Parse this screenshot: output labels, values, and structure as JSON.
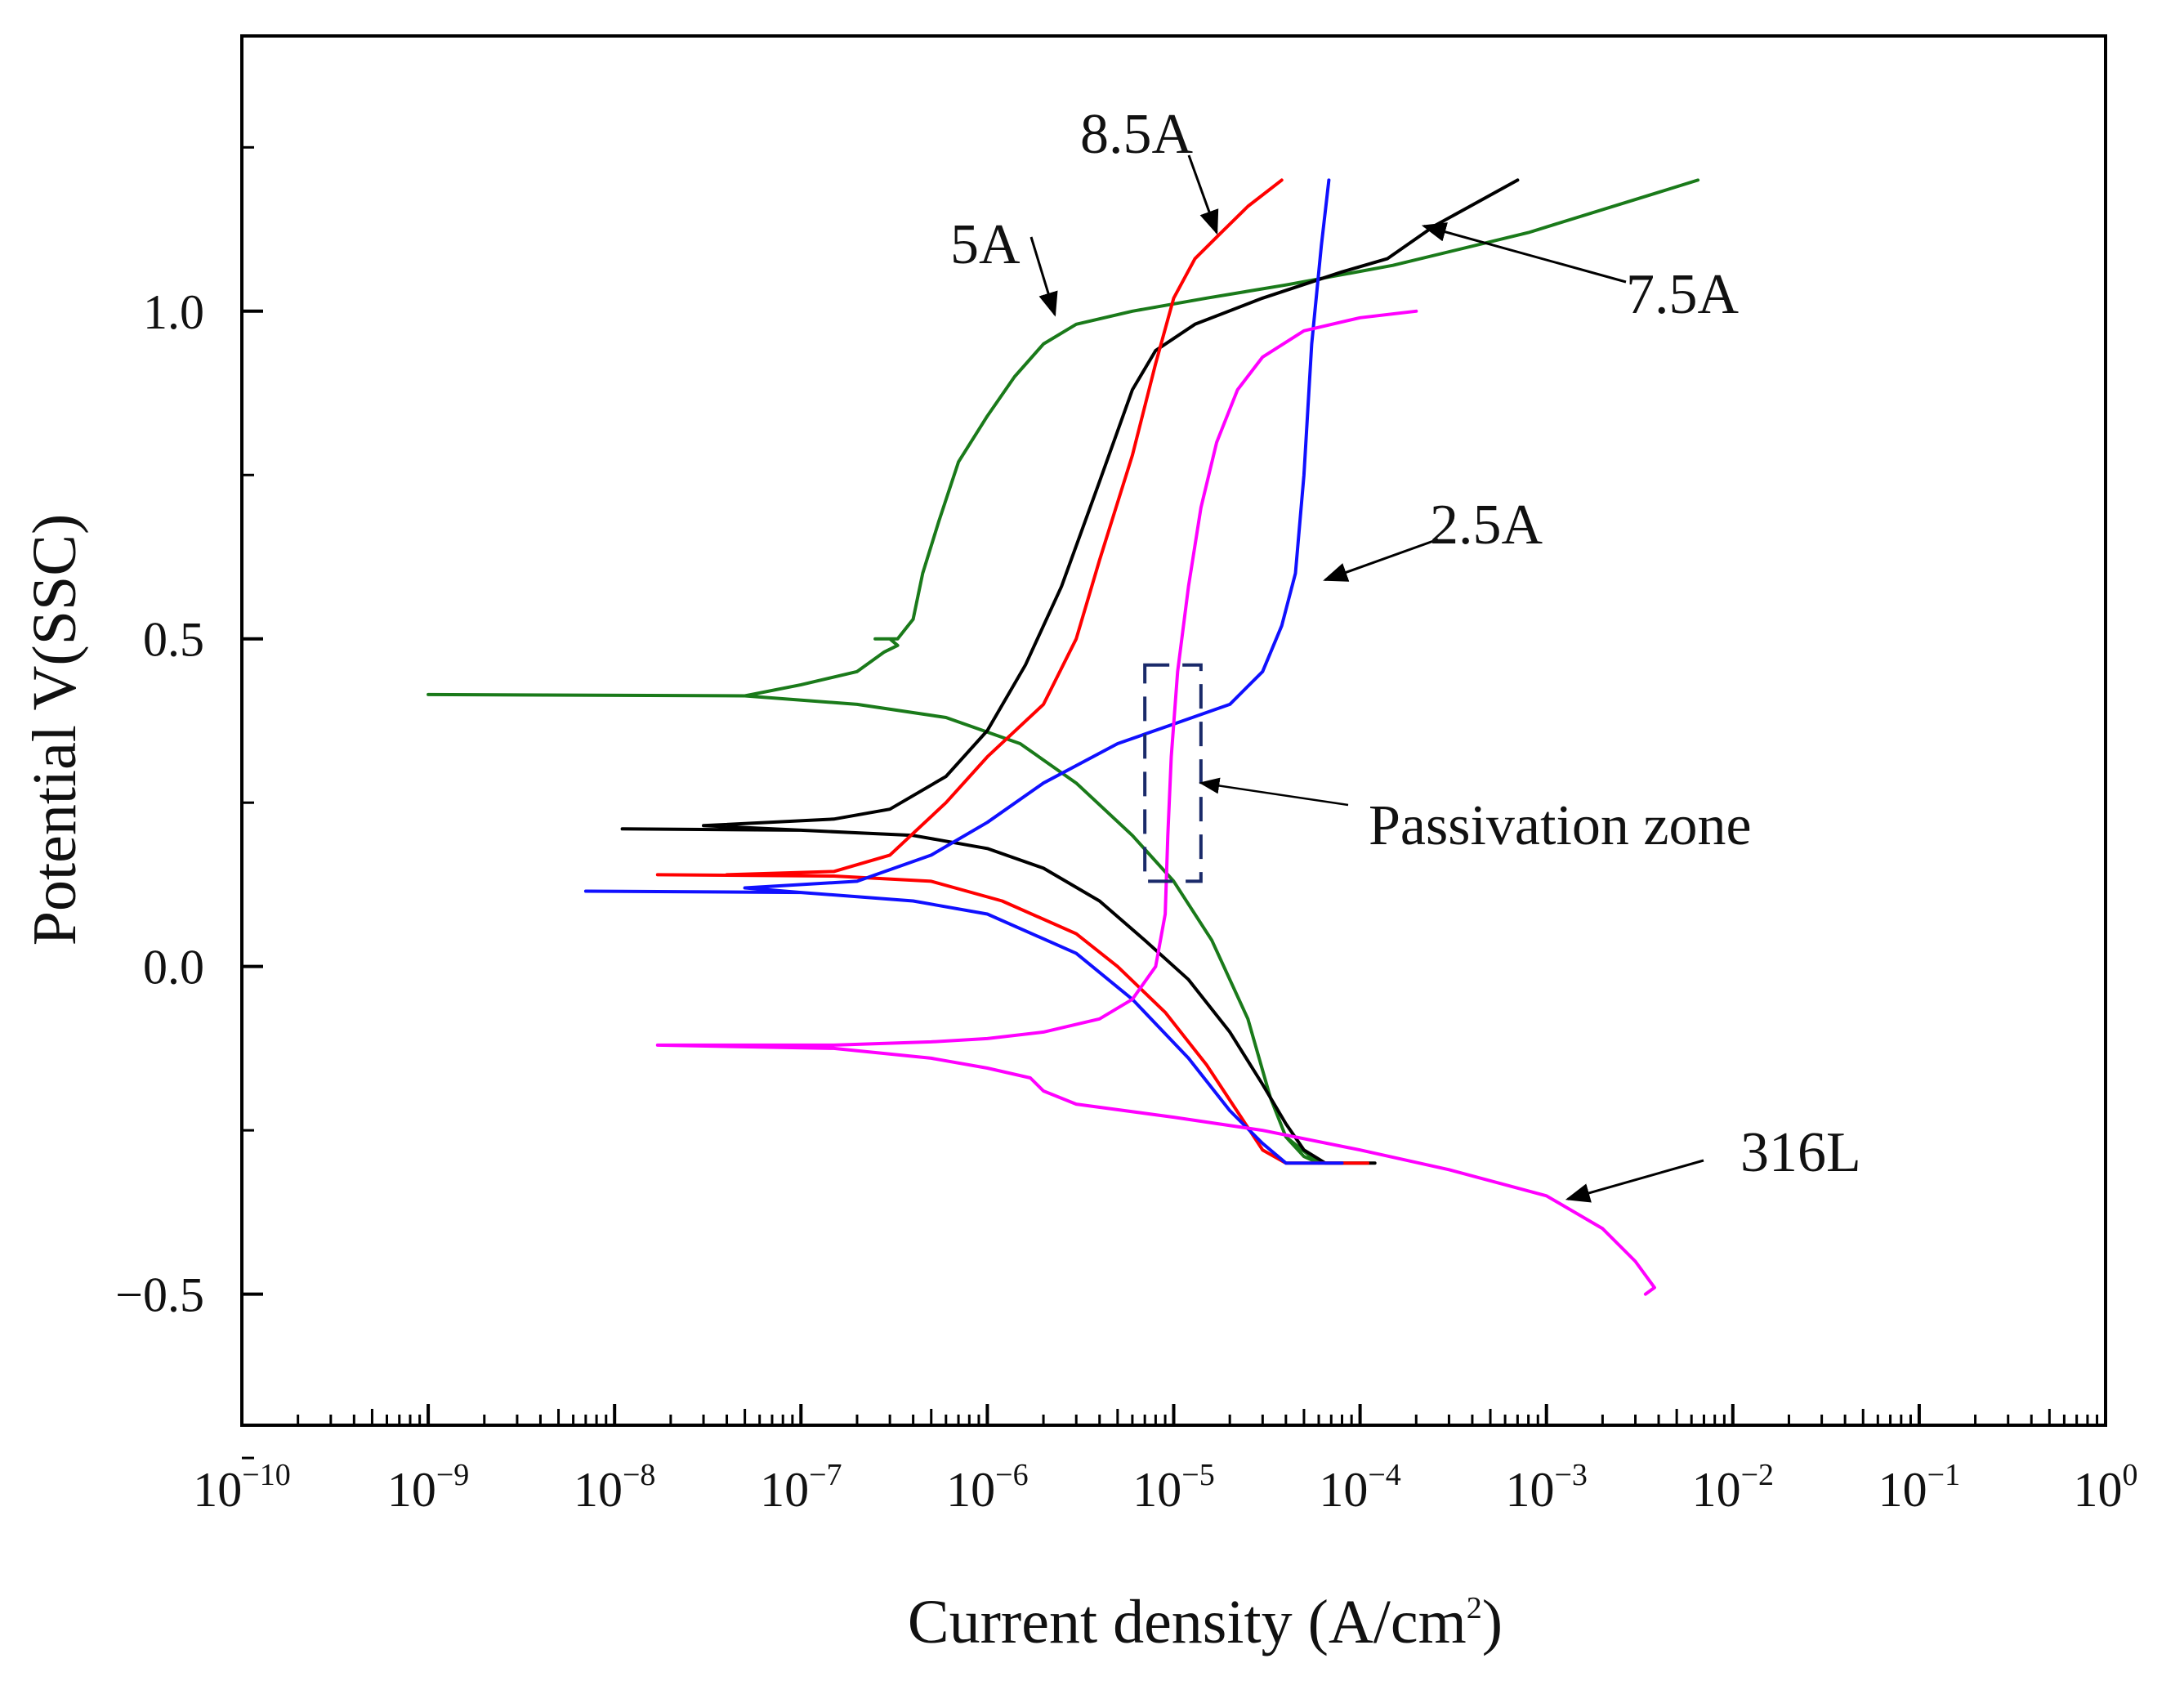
{
  "chart_data": {
    "type": "line",
    "title": "",
    "xlabel": {
      "main": "Current density (A/cm",
      "sup": "2",
      "tail": ")"
    },
    "ylabel": "Potential V(SSC)",
    "x_scale": "log",
    "xlim": [
      1e-10,
      1
    ],
    "ylim": [
      -0.7,
      1.42
    ],
    "x_ticks": [
      {
        "value": 1e-10,
        "base": "10",
        "exp": "−10"
      },
      {
        "value": 1e-09,
        "base": "10",
        "exp": "−9"
      },
      {
        "value": 1e-08,
        "base": "10",
        "exp": "−8"
      },
      {
        "value": 1e-07,
        "base": "10",
        "exp": "−7"
      },
      {
        "value": 1e-06,
        "base": "10",
        "exp": "−6"
      },
      {
        "value": 1e-05,
        "base": "10",
        "exp": "−5"
      },
      {
        "value": 0.0001,
        "base": "10",
        "exp": "−4"
      },
      {
        "value": 0.001,
        "base": "10",
        "exp": "−3"
      },
      {
        "value": 0.01,
        "base": "10",
        "exp": "−2"
      },
      {
        "value": 0.1,
        "base": "10",
        "exp": "−1"
      },
      {
        "value": 1,
        "base": "10",
        "exp": "0"
      }
    ],
    "y_ticks": [
      {
        "value": -0.5,
        "label": "−0.5"
      },
      {
        "value": 0.0,
        "label": "0.0"
      },
      {
        "value": 0.5,
        "label": "0.5"
      },
      {
        "value": 1.0,
        "label": "1.0"
      }
    ],
    "y_minor_ticks": [
      -0.75,
      -0.25,
      0.25,
      0.75,
      1.25
    ],
    "series": [
      {
        "name": "5A",
        "color": "#1a7a1a",
        "points": [
          [
            1e-09,
            0.415
          ],
          [
            5e-08,
            0.413
          ],
          [
            2e-07,
            0.4
          ],
          [
            6e-07,
            0.38
          ],
          [
            1.5e-06,
            0.34
          ],
          [
            3e-06,
            0.28
          ],
          [
            6e-06,
            0.2
          ],
          [
            1e-05,
            0.13
          ],
          [
            1.6e-05,
            0.04
          ],
          [
            2.5e-05,
            -0.08
          ],
          [
            3.3e-05,
            -0.2
          ],
          [
            4e-05,
            -0.26
          ],
          [
            5e-05,
            -0.29
          ],
          [
            6e-05,
            -0.3
          ],
          [
            4e-05,
            -0.26
          ],
          [
            3.3e-05,
            -0.2
          ],
          [
            2.5e-05,
            -0.08
          ],
          [
            1.6e-05,
            0.04
          ],
          [
            1e-05,
            0.13
          ],
          [
            6e-06,
            0.2
          ],
          [
            3e-06,
            0.28
          ],
          [
            1.5e-06,
            0.34
          ],
          [
            6e-07,
            0.38
          ],
          [
            2e-07,
            0.4
          ],
          [
            5e-08,
            0.413
          ],
          [
            1e-07,
            0.43
          ],
          [
            2e-07,
            0.45
          ],
          [
            2.8e-07,
            0.48
          ],
          [
            3.3e-07,
            0.49
          ],
          [
            3e-07,
            0.5
          ],
          [
            2.5e-07,
            0.5
          ],
          [
            3.3e-07,
            0.5
          ],
          [
            4e-07,
            0.53
          ],
          [
            4.5e-07,
            0.6
          ],
          [
            5.5e-07,
            0.68
          ],
          [
            7e-07,
            0.77
          ],
          [
            1e-06,
            0.84
          ],
          [
            1.4e-06,
            0.9
          ],
          [
            2e-06,
            0.95
          ],
          [
            3e-06,
            0.98
          ],
          [
            6e-06,
            1.0
          ],
          [
            1.5e-05,
            1.02
          ],
          [
            4e-05,
            1.04
          ],
          [
            0.00015,
            1.07
          ],
          [
            0.0008,
            1.12
          ],
          [
            0.0065,
            1.2
          ]
        ]
      },
      {
        "name": "7.5A",
        "color": "#000000",
        "points": [
          [
            1.1e-08,
            0.21
          ],
          [
            1e-07,
            0.208
          ],
          [
            4e-07,
            0.2
          ],
          [
            1e-06,
            0.18
          ],
          [
            2e-06,
            0.15
          ],
          [
            4e-06,
            0.1
          ],
          [
            7e-06,
            0.04
          ],
          [
            1.2e-05,
            -0.02
          ],
          [
            2e-05,
            -0.1
          ],
          [
            3e-05,
            -0.18
          ],
          [
            4e-05,
            -0.24
          ],
          [
            5e-05,
            -0.28
          ],
          [
            6.5e-05,
            -0.3
          ],
          [
            0.00012,
            -0.3
          ],
          [
            6.5e-05,
            -0.3
          ],
          [
            5e-05,
            -0.28
          ],
          [
            4e-05,
            -0.24
          ],
          [
            3e-05,
            -0.18
          ],
          [
            2e-05,
            -0.1
          ],
          [
            1.2e-05,
            -0.02
          ],
          [
            7e-06,
            0.04
          ],
          [
            4e-06,
            0.1
          ],
          [
            2e-06,
            0.15
          ],
          [
            1e-06,
            0.18
          ],
          [
            4e-07,
            0.2
          ],
          [
            1e-07,
            0.208
          ],
          [
            3e-08,
            0.215
          ],
          [
            1.5e-07,
            0.225
          ],
          [
            3e-07,
            0.24
          ],
          [
            6e-07,
            0.29
          ],
          [
            1e-06,
            0.36
          ],
          [
            1.6e-06,
            0.46
          ],
          [
            2.5e-06,
            0.58
          ],
          [
            4e-06,
            0.74
          ],
          [
            6e-06,
            0.88
          ],
          [
            8e-06,
            0.94
          ],
          [
            1.3e-05,
            0.98
          ],
          [
            3e-05,
            1.02
          ],
          [
            8e-05,
            1.06
          ],
          [
            0.00014,
            1.08
          ],
          [
            0.00025,
            1.13
          ],
          [
            0.0007,
            1.2
          ]
        ]
      },
      {
        "name": "8.5A",
        "color": "#ff0000",
        "points": [
          [
            1.7e-08,
            0.14
          ],
          [
            1.5e-07,
            0.138
          ],
          [
            5e-07,
            0.13
          ],
          [
            1.2e-06,
            0.1
          ],
          [
            3e-06,
            0.05
          ],
          [
            5e-06,
            0.0
          ],
          [
            9e-06,
            -0.07
          ],
          [
            1.5e-05,
            -0.15
          ],
          [
            2.3e-05,
            -0.23
          ],
          [
            3e-05,
            -0.28
          ],
          [
            4e-05,
            -0.3
          ],
          [
            0.00011,
            -0.3
          ],
          [
            4e-05,
            -0.3
          ],
          [
            3e-05,
            -0.28
          ],
          [
            2.3e-05,
            -0.23
          ],
          [
            1.5e-05,
            -0.15
          ],
          [
            9e-06,
            -0.07
          ],
          [
            5e-06,
            0.0
          ],
          [
            3e-06,
            0.05
          ],
          [
            1.2e-06,
            0.1
          ],
          [
            5e-07,
            0.13
          ],
          [
            1.5e-07,
            0.138
          ],
          [
            4e-08,
            0.14
          ],
          [
            1.5e-07,
            0.145
          ],
          [
            3e-07,
            0.17
          ],
          [
            6e-07,
            0.25
          ],
          [
            1e-06,
            0.32
          ],
          [
            2e-06,
            0.4
          ],
          [
            3e-06,
            0.5
          ],
          [
            4e-06,
            0.62
          ],
          [
            6e-06,
            0.78
          ],
          [
            8e-06,
            0.92
          ],
          [
            1e-05,
            1.02
          ],
          [
            1.3e-05,
            1.08
          ],
          [
            1.8e-05,
            1.12
          ],
          [
            2.5e-05,
            1.16
          ],
          [
            3.8e-05,
            1.2
          ]
        ]
      },
      {
        "name": "2.5A",
        "color": "#1010ff",
        "points": [
          [
            7e-09,
            0.115
          ],
          [
            1e-07,
            0.113
          ],
          [
            4e-07,
            0.1
          ],
          [
            1e-06,
            0.08
          ],
          [
            3e-06,
            0.02
          ],
          [
            6e-06,
            -0.05
          ],
          [
            1.2e-05,
            -0.14
          ],
          [
            2e-05,
            -0.22
          ],
          [
            3e-05,
            -0.27
          ],
          [
            4e-05,
            -0.3
          ],
          [
            8e-05,
            -0.3
          ],
          [
            4e-05,
            -0.3
          ],
          [
            3e-05,
            -0.27
          ],
          [
            2e-05,
            -0.22
          ],
          [
            1.2e-05,
            -0.14
          ],
          [
            6e-06,
            -0.05
          ],
          [
            3e-06,
            0.02
          ],
          [
            1e-06,
            0.08
          ],
          [
            4e-07,
            0.1
          ],
          [
            1e-07,
            0.113
          ],
          [
            5e-08,
            0.12
          ],
          [
            2e-07,
            0.13
          ],
          [
            5e-07,
            0.17
          ],
          [
            1e-06,
            0.22
          ],
          [
            2e-06,
            0.28
          ],
          [
            5e-06,
            0.34
          ],
          [
            1e-05,
            0.37
          ],
          [
            2e-05,
            0.4
          ],
          [
            3e-05,
            0.45
          ],
          [
            3.8e-05,
            0.52
          ],
          [
            4.5e-05,
            0.6
          ],
          [
            5e-05,
            0.75
          ],
          [
            5.5e-05,
            0.95
          ],
          [
            6.2e-05,
            1.1
          ],
          [
            6.8e-05,
            1.2
          ]
        ]
      },
      {
        "name": "316L",
        "color": "#ff00ff",
        "points": [
          [
            0.0034,
            -0.5
          ],
          [
            0.0038,
            -0.49
          ],
          [
            0.003,
            -0.45
          ],
          [
            0.002,
            -0.4
          ],
          [
            0.001,
            -0.35
          ],
          [
            0.0003,
            -0.31
          ],
          [
            0.0001,
            -0.28
          ],
          [
            3e-05,
            -0.25
          ],
          [
            1e-05,
            -0.23
          ],
          [
            3e-06,
            -0.21
          ],
          [
            2e-06,
            -0.19
          ],
          [
            1.7e-06,
            -0.17
          ],
          [
            1e-06,
            -0.155
          ],
          [
            5e-07,
            -0.14
          ],
          [
            1.5e-07,
            -0.125
          ],
          [
            1.7e-08,
            -0.12
          ],
          [
            1.5e-07,
            -0.12
          ],
          [
            5e-07,
            -0.115
          ],
          [
            1e-06,
            -0.11
          ],
          [
            2e-06,
            -0.1
          ],
          [
            4e-06,
            -0.08
          ],
          [
            6e-06,
            -0.05
          ],
          [
            8e-06,
            0.0
          ],
          [
            9e-06,
            0.08
          ],
          [
            9.3e-06,
            0.2
          ],
          [
            9.7e-06,
            0.32
          ],
          [
            1.05e-05,
            0.45
          ],
          [
            1.2e-05,
            0.58
          ],
          [
            1.4e-05,
            0.7
          ],
          [
            1.7e-05,
            0.8
          ],
          [
            2.2e-05,
            0.88
          ],
          [
            3e-05,
            0.93
          ],
          [
            5e-05,
            0.97
          ],
          [
            0.0001,
            0.99
          ],
          [
            0.0002,
            1.0
          ]
        ]
      }
    ],
    "annotations": [
      {
        "text": "8.5A",
        "arrow_to": [
          1.7e-05,
          1.12
        ]
      },
      {
        "text": "5A",
        "arrow_to": [
          2.3e-06,
          0.995
        ]
      },
      {
        "text": "7.5A",
        "arrow_to": [
          0.00022,
          1.13
        ]
      },
      {
        "text": "2.5A",
        "arrow_to": [
          6.5e-05,
          0.59
        ]
      },
      {
        "text": "Passivation zone",
        "arrow_to": [
          1.4e-05,
          0.28
        ]
      },
      {
        "text": "316L",
        "arrow_to": [
          0.0013,
          -0.355
        ]
      }
    ],
    "passivation_box": {
      "x": [
        7e-06,
        1.4e-05
      ],
      "y": [
        0.13,
        0.46
      ]
    }
  }
}
